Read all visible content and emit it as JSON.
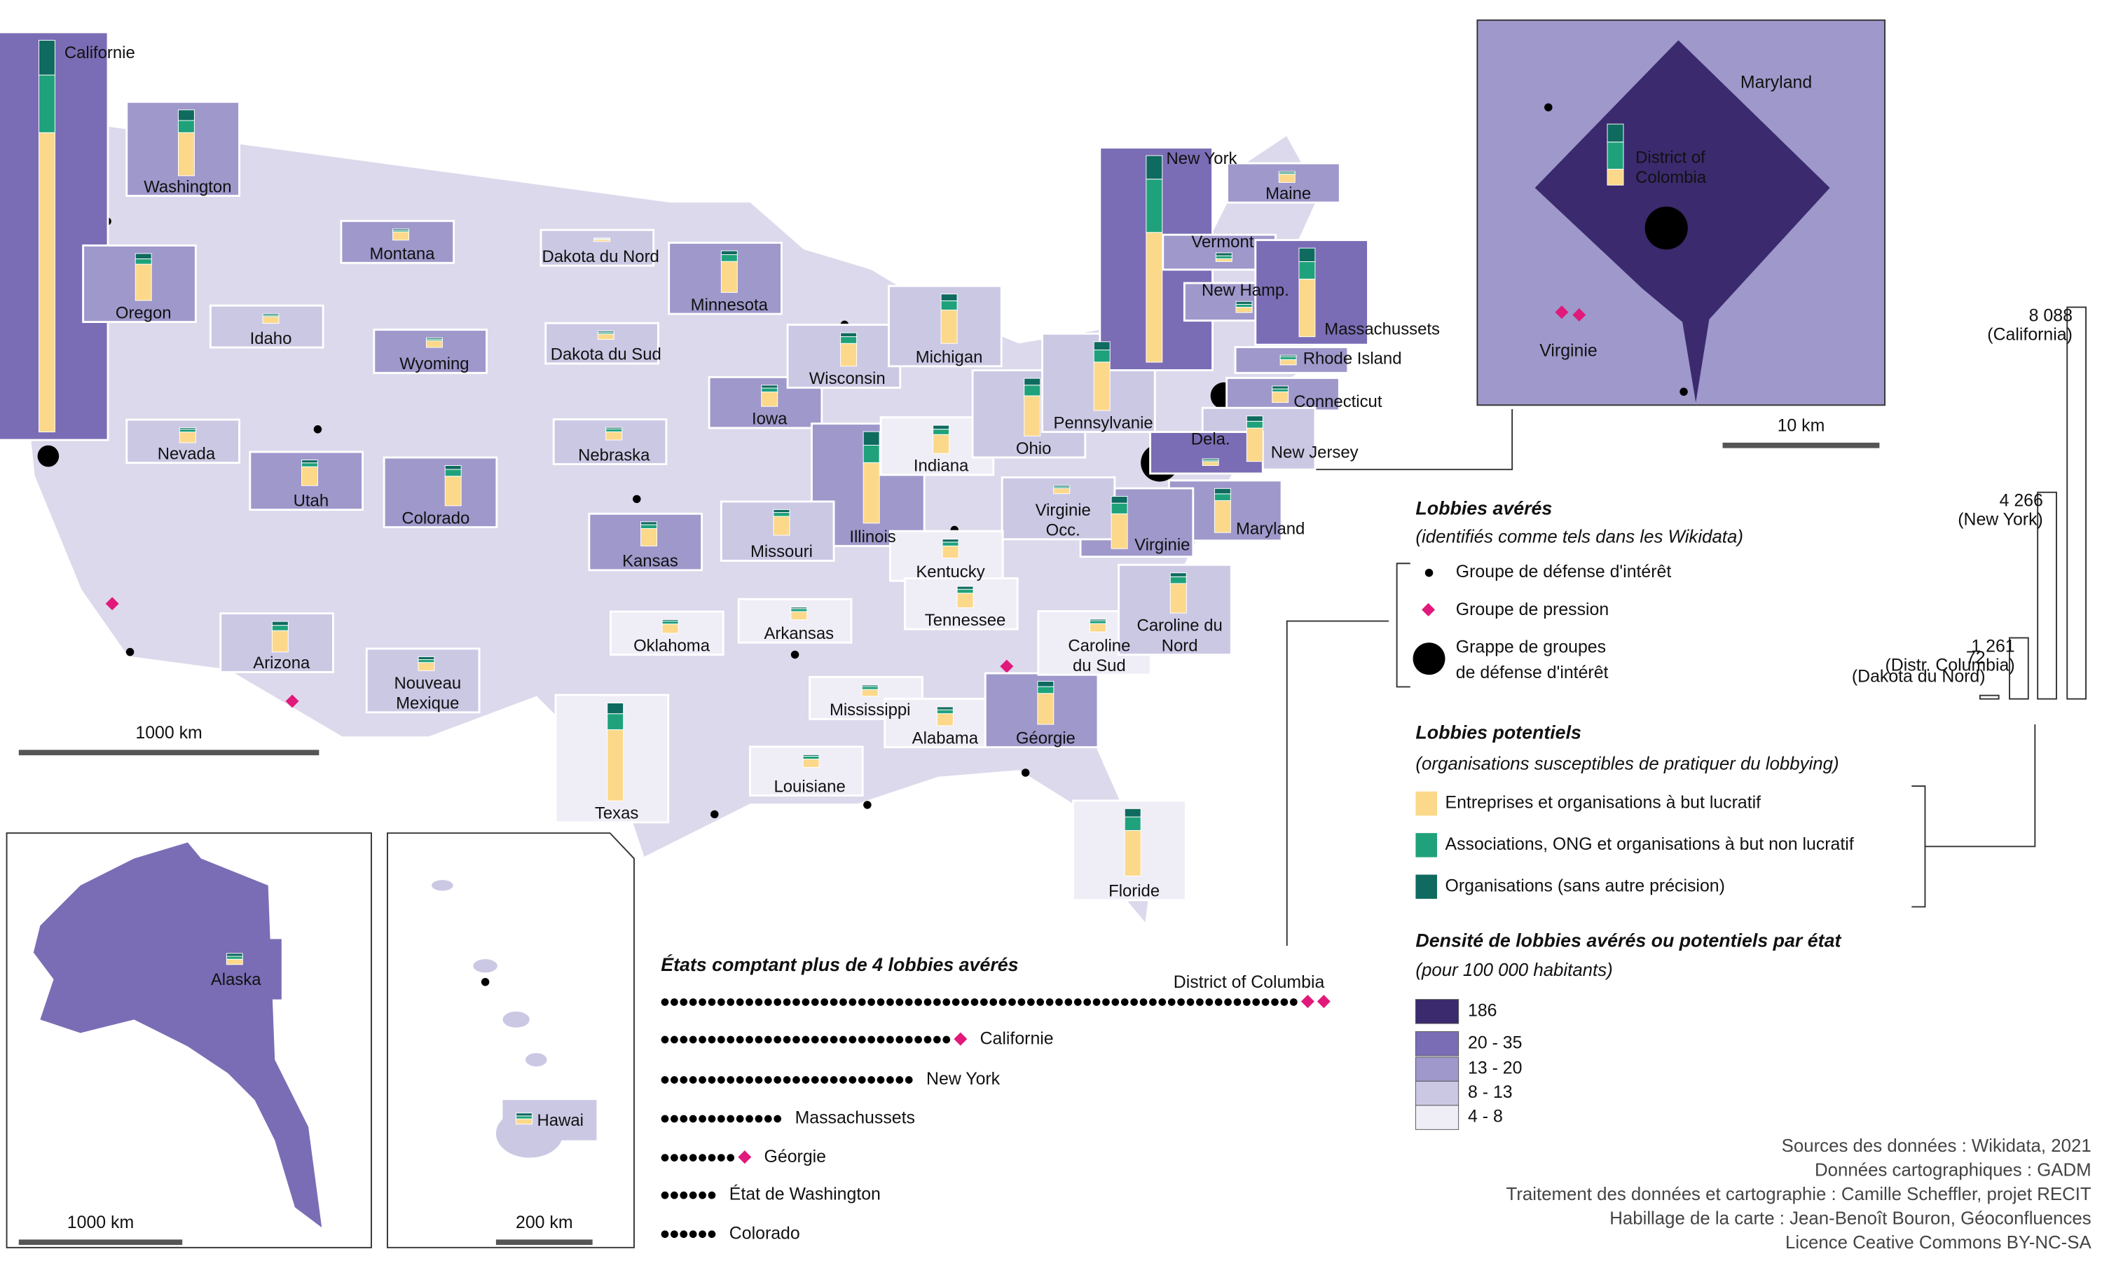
{
  "map": {
    "states": [
      {
        "lines": [
          "Californie"
        ],
        "density": 1,
        "lobbies": [
          6180,
          1190,
          718
        ]
      },
      {
        "lines": [
          "Washington"
        ],
        "density": 2,
        "lobbies": [
          890,
          250,
          220
        ]
      },
      {
        "lines": [
          "Oregon"
        ],
        "density": 2,
        "lobbies": [
          750,
          110,
          110
        ]
      },
      {
        "lines": [
          "Idaho"
        ],
        "density": 3,
        "lobbies": [
          140,
          30,
          30
        ]
      },
      {
        "lines": [
          "Montana"
        ],
        "density": 2,
        "lobbies": [
          170,
          30,
          30
        ]
      },
      {
        "lines": [
          "Dakota du Nord"
        ],
        "density": 3,
        "lobbies": [
          40,
          16,
          16
        ]
      },
      {
        "lines": [
          "Dakota du Sud"
        ],
        "density": 3,
        "lobbies": [
          110,
          30,
          30
        ]
      },
      {
        "lines": [
          "Minnesota"
        ],
        "density": 2,
        "lobbies": [
          640,
          140,
          80
        ]
      },
      {
        "lines": [
          "Wyoming"
        ],
        "density": 2,
        "lobbies": [
          140,
          30,
          30
        ]
      },
      {
        "lines": [
          "Nevada"
        ],
        "density": 3,
        "lobbies": [
          220,
          60,
          30
        ]
      },
      {
        "lines": [
          "Utah"
        ],
        "density": 2,
        "lobbies": [
          390,
          80,
          60
        ]
      },
      {
        "lines": [
          "Colorado"
        ],
        "density": 2,
        "lobbies": [
          610,
          140,
          80
        ]
      },
      {
        "lines": [
          "Nebraska"
        ],
        "density": 3,
        "lobbies": [
          170,
          60,
          30
        ]
      },
      {
        "lines": [
          "Iowa"
        ],
        "density": 2,
        "lobbies": [
          300,
          80,
          60
        ]
      },
      {
        "lines": [
          "Wisconsin"
        ],
        "density": 3,
        "lobbies": [
          470,
          140,
          80
        ]
      },
      {
        "lines": [
          "Michigan"
        ],
        "density": 3,
        "lobbies": [
          690,
          190,
          140
        ]
      },
      {
        "lines": [
          "Illinois"
        ],
        "density": 2,
        "lobbies": [
          1250,
          360,
          280
        ]
      },
      {
        "lines": [
          "Indiana"
        ],
        "density": 4,
        "lobbies": [
          390,
          110,
          80
        ]
      },
      {
        "lines": [
          "Ohio"
        ],
        "density": 3,
        "lobbies": [
          830,
          220,
          140
        ]
      },
      {
        "lines": [
          "Pennsylvanie"
        ],
        "density": 3,
        "lobbies": [
          1000,
          250,
          170
        ]
      },
      {
        "lines": [
          "New York"
        ],
        "density": 1,
        "lobbies": [
          2680,
          1100,
          486
        ]
      },
      {
        "lines": [
          "Vermont"
        ],
        "density": 2,
        "lobbies": [
          60,
          60,
          60
        ]
      },
      {
        "lines": [
          "Maine"
        ],
        "density": 2,
        "lobbies": [
          170,
          30,
          30
        ]
      },
      {
        "lines": [
          "New Hamp."
        ],
        "density": 2,
        "lobbies": [
          110,
          60,
          60
        ]
      },
      {
        "lines": [
          "Massachussets"
        ],
        "density": 1,
        "lobbies": [
          1190,
          360,
          280
        ]
      },
      {
        "lines": [
          "Rhode Island"
        ],
        "density": 2,
        "lobbies": [
          110,
          60,
          30
        ]
      },
      {
        "lines": [
          "Connecticut"
        ],
        "density": 2,
        "lobbies": [
          220,
          60,
          60
        ]
      },
      {
        "lines": [
          "New Jersey"
        ],
        "density": 3,
        "lobbies": [
          690,
          140,
          110
        ]
      },
      {
        "lines": [
          "Dela."
        ],
        "density": 1,
        "lobbies": [
          80,
          30,
          30
        ]
      },
      {
        "lines": [
          "Maryland"
        ],
        "density": 2,
        "lobbies": [
          660,
          140,
          110
        ]
      },
      {
        "lines": [
          "Virginie"
        ],
        "density": 2,
        "lobbies": [
          720,
          220,
          140
        ]
      },
      {
        "lines": [
          "Virginie",
          "Occ."
        ],
        "density": 3,
        "lobbies": [
          110,
          30,
          30
        ]
      },
      {
        "lines": [
          "Kentucky"
        ],
        "density": 4,
        "lobbies": [
          250,
          80,
          60
        ]
      },
      {
        "lines": [
          "Tennessee"
        ],
        "density": 4,
        "lobbies": [
          300,
          80,
          60
        ]
      },
      {
        "lines": [
          "Missouri"
        ],
        "density": 3,
        "lobbies": [
          390,
          80,
          60
        ]
      },
      {
        "lines": [
          "Kansas"
        ],
        "density": 2,
        "lobbies": [
          360,
          80,
          60
        ]
      },
      {
        "lines": [
          "Oklahoma"
        ],
        "density": 4,
        "lobbies": [
          190,
          60,
          30
        ]
      },
      {
        "lines": [
          "Arkansas"
        ],
        "density": 4,
        "lobbies": [
          170,
          60,
          30
        ]
      },
      {
        "lines": [
          "Arizona"
        ],
        "density": 3,
        "lobbies": [
          440,
          110,
          80
        ]
      },
      {
        "lines": [
          "Nouveau",
          "Mexique"
        ],
        "density": 3,
        "lobbies": [
          170,
          60,
          60
        ]
      },
      {
        "lines": [
          "Texas"
        ],
        "density": 4,
        "lobbies": [
          1470,
          330,
          220
        ]
      },
      {
        "lines": [
          "Louisiane"
        ],
        "density": 4,
        "lobbies": [
          170,
          60,
          30
        ]
      },
      {
        "lines": [
          "Mississippi"
        ],
        "density": 4,
        "lobbies": [
          140,
          60,
          30
        ]
      },
      {
        "lines": [
          "Alabama"
        ],
        "density": 4,
        "lobbies": [
          250,
          80,
          60
        ]
      },
      {
        "lines": [
          "Géorgie"
        ],
        "density": 2,
        "lobbies": [
          640,
          140,
          110
        ]
      },
      {
        "lines": [
          "Floride"
        ],
        "density": 4,
        "lobbies": [
          940,
          280,
          170
        ]
      },
      {
        "lines": [
          "Caroline",
          "du Sud"
        ],
        "density": 4,
        "lobbies": [
          170,
          60,
          30
        ]
      },
      {
        "lines": [
          "Caroline du",
          "Nord"
        ],
        "density": 3,
        "lobbies": [
          610,
          140,
          80
        ]
      },
      {
        "lines": [
          "Alaska"
        ],
        "density": 1,
        "lobbies": [
          110,
          60,
          60
        ]
      },
      {
        "lines": [
          "Hawai"
        ],
        "density": 3,
        "lobbies": [
          110,
          60,
          60
        ]
      },
      {
        "lines": [
          "District of",
          "Colombia"
        ],
        "density": 0,
        "lobbies": [
          330,
          560,
          371
        ]
      }
    ],
    "scales": [
      "1000 km",
      "1000 km",
      "200 km",
      "10 km"
    ],
    "inset_labels": [
      "Maryland",
      "Virginie"
    ]
  },
  "legend": {
    "avowed": {
      "title": "Lobbies avérés",
      "subtitle": "(identifiés comme tels dans les Wikidata)",
      "items": [
        "Groupe de défense d'intérêt",
        "Groupe de pression",
        [
          "Grappe de groupes",
          "de défense d'intérêt"
        ]
      ]
    },
    "potential": {
      "title": "Lobbies potentiels",
      "subtitle": "(organisations susceptibles de pratiquer du lobbying)",
      "items": [
        {
          "label": "Entreprises et organisations à but lucratif",
          "color": "#fcd88a"
        },
        {
          "label": "Associations, ONG et organisations à but non lucratif",
          "color": "#1fa27b"
        },
        {
          "label": "Organisations (sans autre précision)",
          "color": "#0f6a5f"
        }
      ]
    },
    "density": {
      "title": "Densité de lobbies avérés ou potentiels par état",
      "subtitle": "(pour 100 000 habitants)",
      "classes": [
        {
          "label": "186",
          "color": "#3b2a6d"
        },
        {
          "label": "20 - 35",
          "color": "#7a6db5"
        },
        {
          "label": "13 - 20",
          "color": "#9e98cb"
        },
        {
          "label": "8 - 13",
          "color": "#cbc8e4"
        },
        {
          "label": "4 - 8",
          "color": "#efeef7"
        }
      ]
    }
  },
  "totals": {
    "values": [
      8088,
      4266,
      1261,
      72
    ],
    "value_labels": [
      "8 088",
      "4 266",
      "1 261",
      "72"
    ],
    "names": [
      "(California)",
      "(New York)",
      "(Distr. Columbia)",
      "(Dakota du Nord)"
    ]
  },
  "ranking": {
    "title": "États comptant plus de 4 lobbies avérés",
    "rows": [
      {
        "name": "District of Columbia",
        "groups": 68,
        "pressure": 2
      },
      {
        "name": "Californie",
        "groups": 31,
        "pressure": 1
      },
      {
        "name": "New York",
        "groups": 27,
        "pressure": 0
      },
      {
        "name": "Massachussets",
        "groups": 13,
        "pressure": 0
      },
      {
        "name": "Géorgie",
        "groups": 8,
        "pressure": 1
      },
      {
        "name": "État de Washington",
        "groups": 6,
        "pressure": 0
      },
      {
        "name": "Colorado",
        "groups": 6,
        "pressure": 0
      }
    ]
  },
  "sources": [
    "Sources des données : Wikidata, 2021",
    "Données cartographiques : GADM",
    "Traitement des données et cartographie : Camille Scheffler, projet RECIT",
    "Habillage de la carte : Jean-Benoît Bouron, Géoconfluences",
    "Licence Ceative Commons BY-NC-SA"
  ]
}
